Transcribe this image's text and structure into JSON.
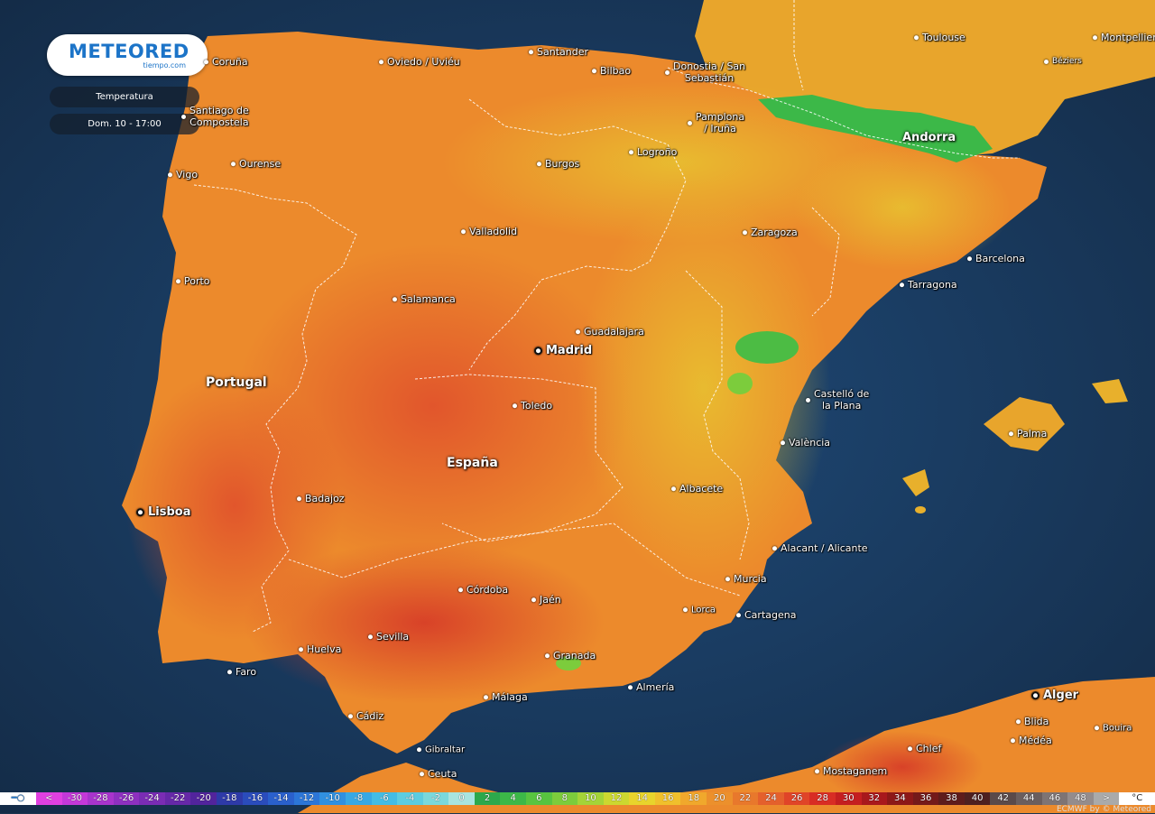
{
  "logo": {
    "brand": "METEORED",
    "sub": "tiempo.com"
  },
  "panel": {
    "variable": "Temperatura",
    "datetime": "Dom. 10 - 17:00"
  },
  "countries": [
    "Portugal",
    "España"
  ],
  "cities": [
    {
      "id": "coruna",
      "label": "Coruña"
    },
    {
      "id": "oviedo",
      "label": "Oviedo / Uviéu"
    },
    {
      "id": "santander",
      "label": "Santander"
    },
    {
      "id": "bilbao",
      "label": "Bilbao"
    },
    {
      "id": "donostia",
      "label": "Donostia / San\nSebastián"
    },
    {
      "id": "toulouse",
      "label": "Toulouse"
    },
    {
      "id": "montpellier",
      "label": "Montpellier"
    },
    {
      "id": "beziers",
      "label": "Béziers"
    },
    {
      "id": "santiago",
      "label": "Santiago de\nCompostela"
    },
    {
      "id": "pamplona",
      "label": "Pamplona\n/ Iruña"
    },
    {
      "id": "andorra",
      "label": "Andorra"
    },
    {
      "id": "ourense",
      "label": "Ourense"
    },
    {
      "id": "burgos",
      "label": "Burgos"
    },
    {
      "id": "logrono",
      "label": "Logroño"
    },
    {
      "id": "vigo",
      "label": "Vigo"
    },
    {
      "id": "valladolid",
      "label": "Valladolid"
    },
    {
      "id": "zaragoza",
      "label": "Zaragoza"
    },
    {
      "id": "barcelona",
      "label": "Barcelona"
    },
    {
      "id": "porto",
      "label": "Porto"
    },
    {
      "id": "tarragona",
      "label": "Tarragona"
    },
    {
      "id": "salamanca",
      "label": "Salamanca"
    },
    {
      "id": "guadalajara",
      "label": "Guadalajara"
    },
    {
      "id": "madrid",
      "label": "Madrid"
    },
    {
      "id": "castello",
      "label": "Castelló de\nla Plana"
    },
    {
      "id": "toledo",
      "label": "Toledo"
    },
    {
      "id": "palma",
      "label": "Palma"
    },
    {
      "id": "valencia",
      "label": "València"
    },
    {
      "id": "albacete",
      "label": "Albacete"
    },
    {
      "id": "badajoz",
      "label": "Badajoz"
    },
    {
      "id": "lisboa",
      "label": "Lisboa"
    },
    {
      "id": "alicante",
      "label": "Alacant / Alicante"
    },
    {
      "id": "murcia",
      "label": "Murcia"
    },
    {
      "id": "cordoba",
      "label": "Córdoba"
    },
    {
      "id": "jaen",
      "label": "Jaén"
    },
    {
      "id": "lorca",
      "label": "Lorca"
    },
    {
      "id": "cartagena",
      "label": "Cartagena"
    },
    {
      "id": "huelva",
      "label": "Huelva"
    },
    {
      "id": "sevilla",
      "label": "Sevilla"
    },
    {
      "id": "granada",
      "label": "Granada"
    },
    {
      "id": "faro",
      "label": "Faro"
    },
    {
      "id": "almeria",
      "label": "Almería"
    },
    {
      "id": "malaga",
      "label": "Málaga"
    },
    {
      "id": "alger",
      "label": "Alger"
    },
    {
      "id": "cadiz",
      "label": "Cádiz"
    },
    {
      "id": "blida",
      "label": "Blida"
    },
    {
      "id": "bouira",
      "label": "Bouira"
    },
    {
      "id": "medea",
      "label": "Médéa"
    },
    {
      "id": "gibraltar",
      "label": "Gibraltar"
    },
    {
      "id": "chlef",
      "label": "Chlef"
    },
    {
      "id": "ceuta",
      "label": "Ceuta"
    },
    {
      "id": "mostaganem",
      "label": "Mostaganem"
    }
  ],
  "legend": {
    "unit": "°C",
    "labels": [
      "<",
      "-30",
      "-28",
      "-26",
      "-24",
      "-22",
      "-20",
      "-18",
      "-16",
      "-14",
      "-12",
      "-10",
      "-8",
      "-6",
      "-4",
      "-2",
      "0",
      "2",
      "4",
      "6",
      "8",
      "10",
      "12",
      "14",
      "16",
      "18",
      "20",
      "22",
      "24",
      "26",
      "28",
      "30",
      "32",
      "34",
      "36",
      "38",
      "40",
      "42",
      "44",
      "46",
      "48",
      ">"
    ],
    "colors": [
      "#e040e0",
      "#c438d8",
      "#a834cc",
      "#8e30c0",
      "#7a2cb4",
      "#6628a8",
      "#52249c",
      "#2e3aa8",
      "#2a4cbc",
      "#2a60cc",
      "#2c76d8",
      "#3090e0",
      "#38a8e4",
      "#44bce4",
      "#5ccce0",
      "#7ad8dc",
      "#a8e4e0",
      "#2ca84c",
      "#3cb848",
      "#58c440",
      "#7ccc3c",
      "#a4d438",
      "#ccd830",
      "#e8d42c",
      "#f0c02c",
      "#f0a82c",
      "#ec902c",
      "#e8782c",
      "#e4602c",
      "#e04428",
      "#d82c24",
      "#c41e20",
      "#a8181c",
      "#8c1818",
      "#741a1a",
      "#5e1c1c",
      "#4e2020",
      "#5a4a4a",
      "#6a5e5e",
      "#7e7474",
      "#948c8c",
      "#aaaaaa"
    ]
  },
  "credit": "ECMWF by © Meteored"
}
